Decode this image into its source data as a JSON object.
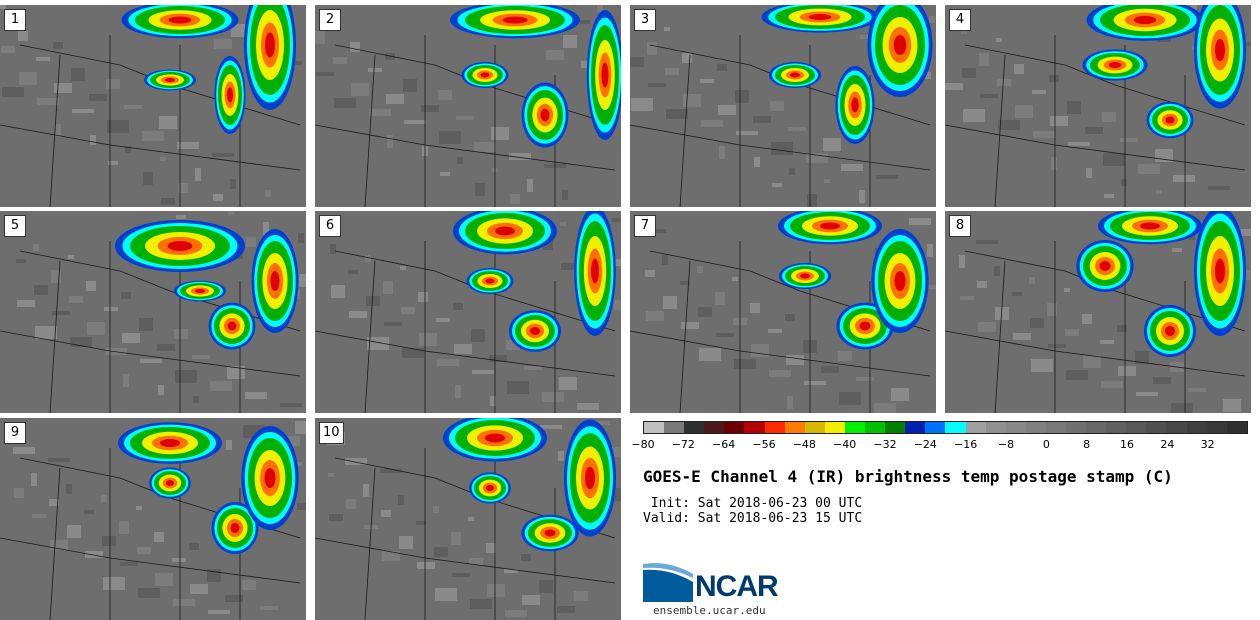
{
  "panels": [
    {
      "label": "1"
    },
    {
      "label": "2"
    },
    {
      "label": "3"
    },
    {
      "label": "4"
    },
    {
      "label": "5"
    },
    {
      "label": "6"
    },
    {
      "label": "7"
    },
    {
      "label": "8"
    },
    {
      "label": "9"
    },
    {
      "label": "10"
    }
  ],
  "colorbar": {
    "colors": [
      "#c0c0c0",
      "#7a7a7a",
      "#303030",
      "#4a1a1a",
      "#6a0000",
      "#b40000",
      "#ff2a00",
      "#ff7a00",
      "#d8b800",
      "#f0f000",
      "#00f000",
      "#00c000",
      "#008000",
      "#0020b0",
      "#0070ff",
      "#00ffff",
      "#a0a0a0",
      "#909090",
      "#888888",
      "#808080",
      "#787878",
      "#707070",
      "#686868",
      "#606060",
      "#585858",
      "#505050",
      "#484848",
      "#404040",
      "#383838",
      "#303030"
    ],
    "tick_labels": [
      "−80",
      "−72",
      "−64",
      "−56",
      "−48",
      "−40",
      "−32",
      "−24",
      "−16",
      "−8",
      "0",
      "8",
      "16",
      "24",
      "32"
    ]
  },
  "title": "GOES-E Channel 4 (IR) brightness temp postage stamp (C)",
  "init": " Init: Sat 2018-06-23 00 UTC",
  "valid": "Valid: Sat 2018-06-23 15 UTC",
  "logo": {
    "name": "NCAR",
    "url": "ensemble.ucar.edu"
  }
}
